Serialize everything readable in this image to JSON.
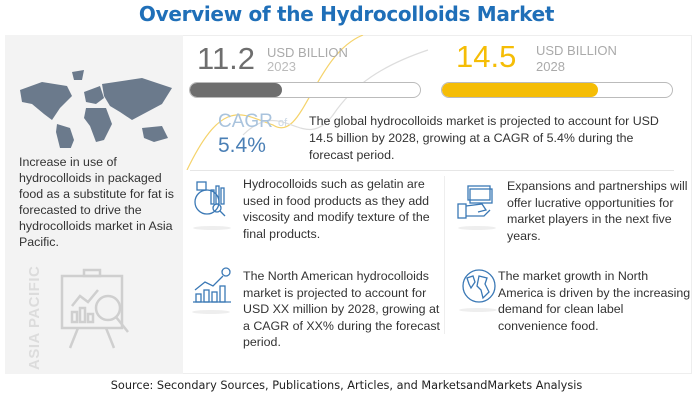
{
  "title": "Overview of the Hydrocolloids Market",
  "left_panel": {
    "text": "Increase in use of hydrocolloids in packaged food as a substitute for fat is forecasted to drive the hydrocolloids market in Asia Pacific.",
    "region": "ASIA PACIFIC"
  },
  "market_2023": {
    "value": "11.2",
    "unit": "USD BILLION",
    "year": "2023",
    "bar_fill_fraction": 0.4
  },
  "market_2028": {
    "value": "14.5",
    "unit": "USD BILLION",
    "year": "2028",
    "bar_fill_fraction": 0.68
  },
  "cagr": {
    "label": "CAGR",
    "of": "of",
    "value": "5.4%"
  },
  "summary": "The global hydrocolloids market is projected to account for USD 14.5 billion by 2028, growing at a CAGR of 5.4% during the forecast period.",
  "insights": [
    {
      "icon": "analytics-icon",
      "text": "Hydrocolloids such as gelatin are used in food products as they add viscosity and modify texture of the final products."
    },
    {
      "icon": "money-hand-icon",
      "text": "Expansions and partnerships will offer lucrative opportunities for market players in the next five years."
    },
    {
      "icon": "growth-chart-icon",
      "text": "The North American hydrocolloids market is projected to account for USD XX million by 2028, growing at a CAGR of XX% during the forecast period."
    },
    {
      "icon": "globe-icon",
      "text": "The market growth in North America is driven by the increasing demand for clean label convenience food."
    }
  ],
  "source": "Source: Secondary Sources, Publications, Articles, and MarketsandMarkets Analysis",
  "colors": {
    "title": "#1f6fb8",
    "gray_bar": "#6e6e6e",
    "yellow": "#f5bd06",
    "cagr": "#4a7fb5",
    "map": "#6b7a8c"
  }
}
